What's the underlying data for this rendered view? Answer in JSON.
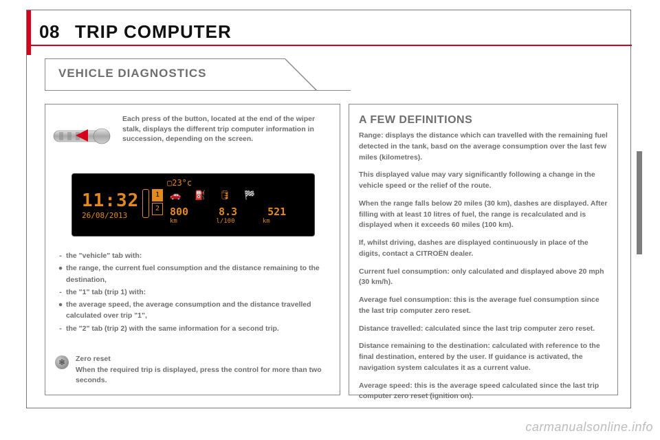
{
  "header": {
    "num": "08",
    "title": "TRIP COMPUTER"
  },
  "tab": {
    "label": "VEHICLE DIAGNOSTICS"
  },
  "stalk": {
    "text": "Each press of the button, located at the end of the wiper stalk, displays the different trip computer information in succession, depending on the screen.",
    "arrow_color": "#d4021d"
  },
  "display": {
    "bg": "#000000",
    "fg": "#e38a1c",
    "temp": "23°c",
    "time": "11:32",
    "date": "26/08/2013",
    "tab_index": [
      "1",
      "2"
    ],
    "icon_row": "🚗  ⛽  🛢  🏁",
    "v1": "800",
    "u1": "km",
    "v2": "8.3",
    "u2": "l/100",
    "v3": "521",
    "u3": "km"
  },
  "bullets": [
    {
      "mk": "-",
      "tx": "the \"vehicle\" tab with:"
    },
    {
      "mk": "●",
      "tx": "the range, the current fuel consumption and the distance remaining to the destination,"
    },
    {
      "mk": "-",
      "tx": "the \"1\" tab (trip 1) with:"
    },
    {
      "mk": "●",
      "tx": "the average speed, the average consumption and the distance travelled calculated over trip \"1\","
    },
    {
      "mk": "-",
      "tx": "the \"2\" tab (trip 2) with the same information for a second trip."
    }
  ],
  "gear": {
    "title": "Zero reset",
    "body": "When the required trip is displayed, press the control for more than two seconds.",
    "glyph": "❄"
  },
  "defs": {
    "title": "A FEW DEFINITIONS",
    "paras": [
      "Range: displays the distance which can travelled with the remaining fuel detected in the tank, basd on the average consumption over the last few miles (kilometres).",
      "This displayed value may vary significantly following a change in the vehicle speed or the relief of the route.",
      "When the range falls below 20 miles (30 km), dashes are displayed. After filling with at least 10 litres of fuel, the range is recalculated and is displayed when it exceeds 60 miles (100 km).",
      "If, whilst driving, dashes are displayed continuously in place of the digits, contact a CITROËN dealer.",
      "Current fuel consumption: only calculated and displayed above 20 mph (30 km/h).",
      "Average fuel consumption: this is the average fuel consumption since the last trip computer zero reset.",
      "Distance travelled: calculated since the last trip computer zero reset.",
      "Distance remaining to the destination: calculated with reference to the final destination, entered by the user. If guidance is activated, the navigation system calculates it as a current value.",
      "Average speed: this is the average speed calculated since the last trip computer zero reset (ignition on)."
    ]
  },
  "watermark": "carmanualsonline.info",
  "colors": {
    "red": "#d4021d",
    "grey": "#6e6e6e",
    "border": "#888888"
  }
}
